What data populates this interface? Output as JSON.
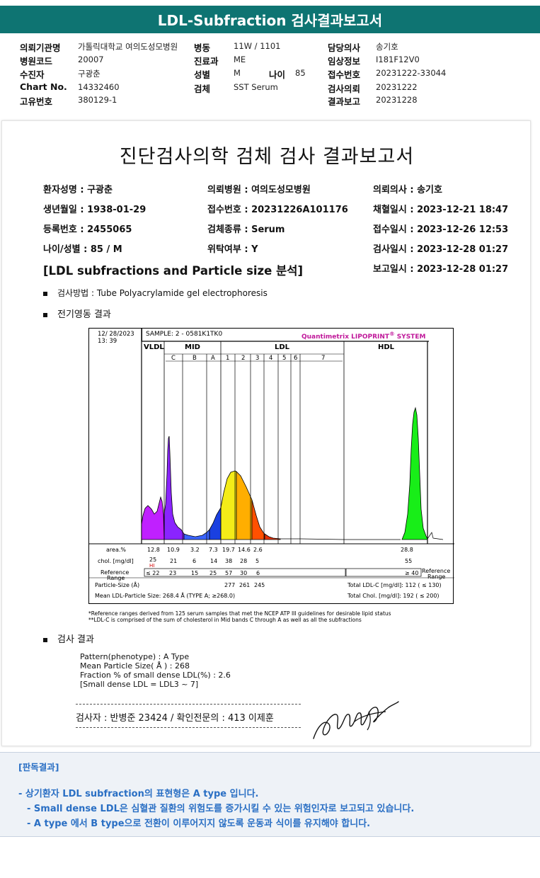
{
  "header": {
    "title": "LDL-Subfraction 검사결과보고서"
  },
  "info": {
    "labels": [
      "의뢰기관명",
      "병원코드",
      "수진자",
      "Chart No.",
      "고유번호",
      "병동",
      "진료과",
      "성별",
      "나이",
      "검체",
      "담당의사",
      "임상정보",
      "접수번호",
      "검사의뢰",
      "결과보고"
    ],
    "institution": "가톨릭대학교 여의도성모병원",
    "hospital_code": "20007",
    "patient": "구광춘",
    "chart_no": "14332460",
    "unique_no": "380129-1",
    "ward": "11W / 1101",
    "dept": "ME",
    "sex": "M",
    "age": "85",
    "specimen": "SST Serum",
    "doctor": "송기호",
    "clinical_info": "I181F12V0",
    "receipt_no": "20231222-33044",
    "request_date": "20231222",
    "report_date": "20231228"
  },
  "report": {
    "title": "진단검사의학 검체 검사 결과보고서",
    "fields": [
      "환자성명 : 구광춘",
      "의뢰병원 : 여의도성모병원",
      "의뢰의사 : 송기호",
      "생년월일 : 1938-01-29",
      "접수번호 : 20231226A101176",
      "채혈일시 : 2023-12-21 18:47",
      "등록번호 : 2455065",
      "검체종류 : Serum",
      "접수일시 : 2023-12-26 12:53",
      "나이/성별 : 85 / M",
      "위탁여부 : Y",
      "검사일시 : 2023-12-28 01:27",
      "보고일시 : 2023-12-28 01:27"
    ],
    "subtitle": "[LDL subfractions and Particle size 분석]",
    "method": "검사방법 : Tube Polyacrylamide gel electrophoresis",
    "electro_heading": "전기영동 결과",
    "result_heading": "검사 결과",
    "results": [
      "Pattern(phenotype) : A Type",
      "Mean Particle Size( Å ) : 268",
      "Fraction % of small dense LDL(%) : 2.6",
      "[Small dense LDL = LDL3 ~ 7]"
    ],
    "signoff": "검사자 : 반병준  23424  /  확인전문의 : 413  이제훈"
  },
  "chart_data": {
    "type": "area",
    "header": {
      "date": "12/ 28/2023",
      "time": "13: 39",
      "sample": "SAMPLE:   2 - 0581K1TK0",
      "brand": "Quantimetrix LIPOPRINT",
      "brand_mark": "®",
      "brand_suffix": " SYSTEM"
    },
    "regions": [
      "VLDL",
      "MID",
      "LDL",
      "HDL"
    ],
    "bands": [
      "C",
      "B",
      "A",
      "1",
      "2",
      "3",
      "4",
      "5",
      "6",
      "7"
    ],
    "colors": {
      "vldl": "#c020ff",
      "midC": "#8a24ff",
      "midB": "#3a64ff",
      "midA": "#1a40e0",
      "ldl1": "#f4ec18",
      "ldl2": "#ffae00",
      "ldl3": "#ff5000",
      "ldl4": "#e83000",
      "hdl": "#18ee18"
    },
    "rows": {
      "area_label": "area.%",
      "area_values": [
        "12.8",
        "10.9",
        "3.2",
        "7.3",
        "19.7",
        "14.6",
        "2.6"
      ],
      "area_hdl": "28.8",
      "chol_label": "chol. [mg/dl]",
      "chol_values": [
        "25",
        "21",
        "6",
        "14",
        "38",
        "28",
        "5"
      ],
      "chol_hdl": "55",
      "hi_flag": "HI",
      "ref_label_1": "Reference",
      "ref_label_2": "Range",
      "ref_values": [
        "≤ 22",
        "23",
        "15",
        "25",
        "57",
        "30",
        "6"
      ],
      "ref_hdl": "≥ 40",
      "ref_right_1": "Reference",
      "ref_right_2": "Range",
      "particle_label": "Particle-Size (Å)",
      "particle_values": [
        "277",
        "261",
        "245"
      ],
      "mean_label": "Mean LDL-Particle Size:   268.4 Å   (TYPE A; ≥268.0)",
      "total_ldl": "Total LDL-C [mg/dl]:   112      ( ≤ 130)",
      "total_chol": "Total Chol. [mg/dl]:    192      ( ≤ 200)"
    },
    "footnotes": [
      "*Reference ranges derived from 125 serum samples that met the NCEP ATP III guidelines for desirable lipid status",
      "**LDL-C is comprised of the sum of cholesterol in Mid bands C through A as well as all the subfractions"
    ]
  },
  "verdict": {
    "title": "[판독결과]",
    "lines": [
      "- 상기환자 LDL subfraction의 표현형은 A type 입니다.",
      "-   Small dense LDL은 심혈관 질환의 위험도를 증가시킬 수 있는 위험인자로 보고되고 있습니다.",
      "-   A type 에서 B type으로 전환이 이루어지지 않도록 운동과 식이를 유지해야 합니다."
    ]
  }
}
